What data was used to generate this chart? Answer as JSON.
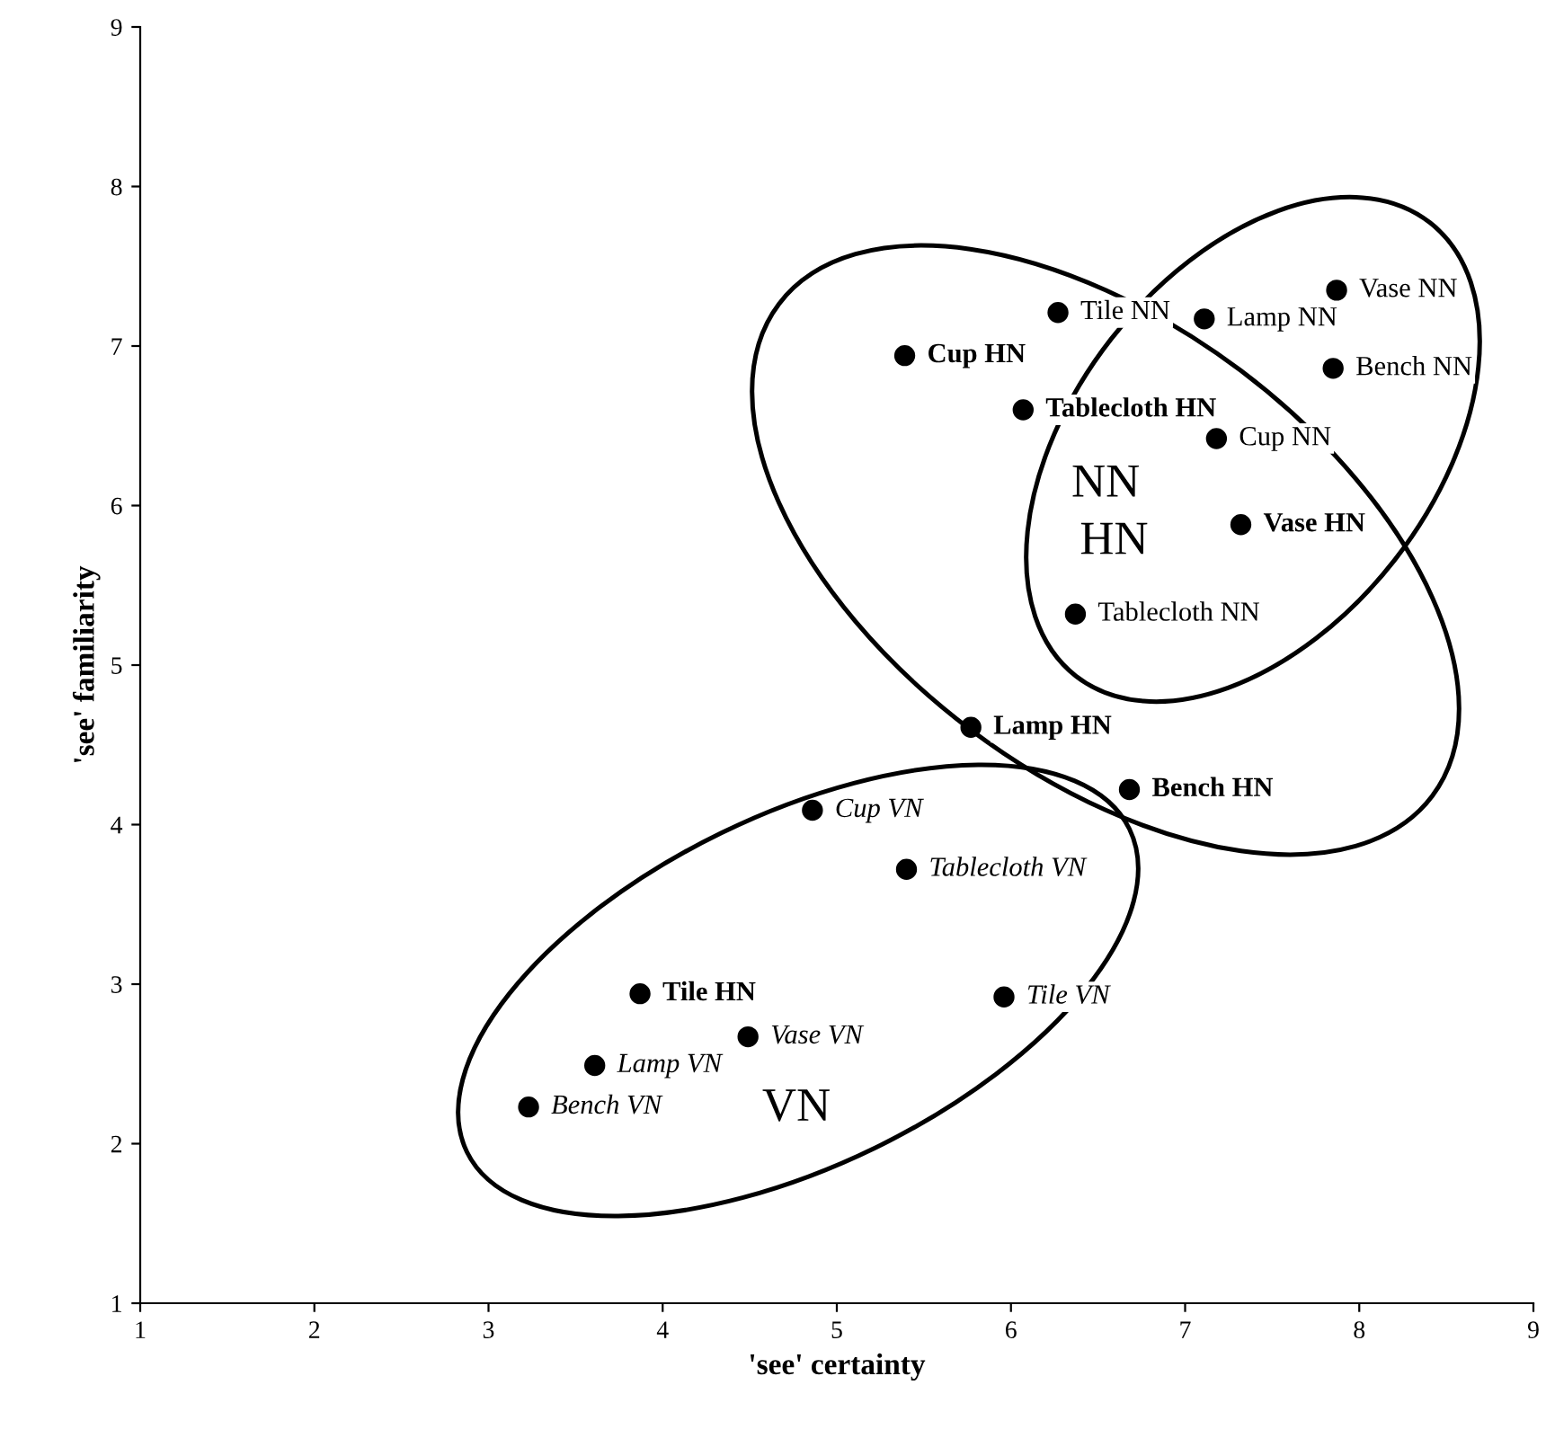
{
  "chart_data": {
    "type": "scatter",
    "xlabel": "'see' certainty",
    "ylabel": "'see' familiarity",
    "xlim": [
      1,
      9
    ],
    "ylim": [
      1,
      9
    ],
    "xticks": [
      1,
      2,
      3,
      4,
      5,
      6,
      7,
      8,
      9
    ],
    "yticks": [
      1,
      2,
      3,
      4,
      5,
      6,
      7,
      8,
      9
    ],
    "grid": false,
    "legend": false,
    "marker": "circle",
    "series": [
      {
        "color": "#000000",
        "x": [
          6.27,
          7.11,
          7.87,
          7.85,
          7.18,
          6.37
        ],
        "values": [
          7.21,
          7.17,
          7.35,
          6.86,
          6.42,
          5.32
        ],
        "value_labels": [
          "Tile NN",
          "Lamp NN",
          "Vase NN",
          "Bench NN",
          "Cup NN",
          "Tablecloth NN"
        ]
      },
      {
        "color": "#000000",
        "x": [
          5.39,
          6.07,
          7.32,
          5.77,
          6.68,
          3.87
        ],
        "values": [
          6.94,
          6.6,
          5.88,
          4.61,
          4.22,
          2.94
        ],
        "value_labels": [
          "Cup HN",
          "Tablecloth HN",
          "Vase HN",
          "Lamp HN",
          "Bench HN",
          "Tile HN"
        ]
      },
      {
        "color": "#000000",
        "x": [
          4.86,
          5.4,
          5.96,
          4.49,
          3.61,
          3.23
        ],
        "values": [
          4.09,
          3.72,
          2.92,
          2.67,
          2.49,
          2.23
        ],
        "value_labels": [
          "Cup VN",
          "Tablecloth VN",
          "Tile VN",
          "Vase VN",
          "Lamp VN",
          "Bench VN"
        ]
      }
    ],
    "annotations": [
      "NN",
      "HN",
      "VN"
    ]
  }
}
